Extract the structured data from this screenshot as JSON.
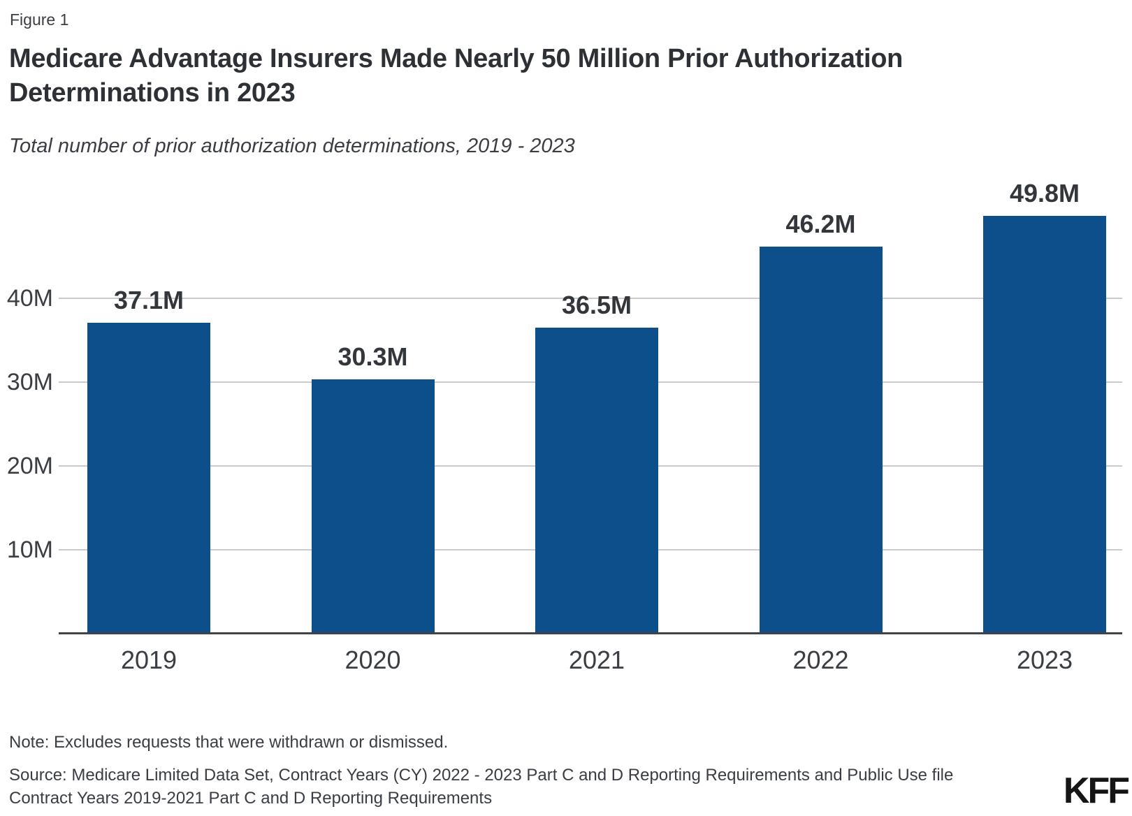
{
  "figure_label": "Figure 1",
  "title_lines": [
    "Medicare Advantage Insurers Made Nearly 50 Million Prior Authorization",
    "Determinations in 2023"
  ],
  "subtitle": "Total number of prior authorization determinations, 2019 - 2023",
  "footer": {
    "note": "Note: Excludes requests that were withdrawn or dismissed.",
    "source_line1": "Source: Medicare Limited Data Set, Contract Years (CY) 2022 - 2023 Part C and D Reporting Requirements and Public Use file",
    "source_line2": "Contract Years 2019-2021 Part C and D Reporting Requirements",
    "logo": "KFF"
  },
  "colors": {
    "bar": "#0D4F8B",
    "grid": "#CBCBCB",
    "axis": "#404448",
    "title_text": "#2D3136",
    "body_text": "#3A3E44",
    "value_label_text": "#33373C",
    "logo_text": "#151515",
    "background": "#FFFFFF"
  },
  "chart_data": {
    "type": "bar",
    "title": "Medicare Advantage Insurers Made Nearly 50 Million Prior Authorization Determinations in 2023",
    "subtitle": "Total number of prior authorization determinations, 2019 - 2023",
    "categories": [
      "2019",
      "2020",
      "2021",
      "2022",
      "2023"
    ],
    "values": [
      37.1,
      30.3,
      36.5,
      46.2,
      49.8
    ],
    "value_labels": [
      "37.1M",
      "30.3M",
      "36.5M",
      "46.2M",
      "49.8M"
    ],
    "unit": "millions of prior authorization determinations",
    "xlabel": "",
    "ylabel": "",
    "ylim": [
      0,
      55.6
    ],
    "yticks": [
      {
        "value": 10,
        "label": "10M"
      },
      {
        "value": 20,
        "label": "20M"
      },
      {
        "value": 30,
        "label": "30M"
      },
      {
        "value": 40,
        "label": "40M"
      }
    ],
    "grid": true,
    "legend": false,
    "bar_color": "#0D4F8B"
  }
}
